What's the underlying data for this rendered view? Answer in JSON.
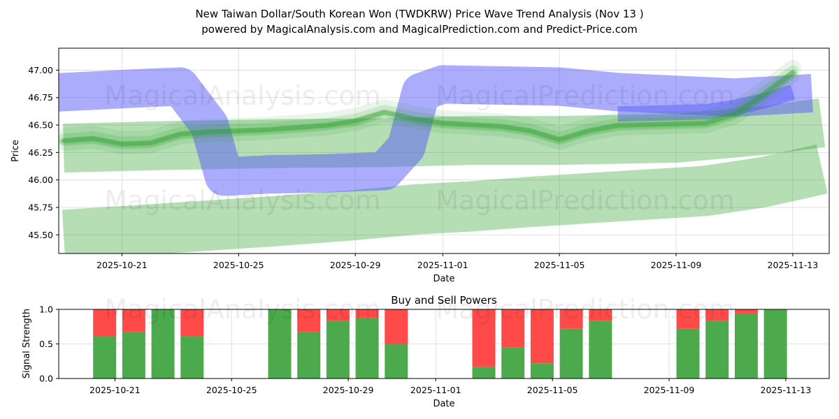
{
  "title_line1": "New Taiwan Dollar/South Korean Won (TWDKRW) Price Wave Trend Analysis (Nov 13 )",
  "title_line2": "powered by MagicalAnalysis.com and MagicalPrediction.com and Predict-Price.com",
  "watermarks": [
    "MagicalAnalysis.com",
    "MagicalPrediction.com"
  ],
  "colors": {
    "green": "#2ca02c",
    "blue": "#5a5afa",
    "buy": "#4caa4c",
    "sell": "#ff4a4a"
  },
  "chart_data": [
    {
      "type": "line",
      "title": "",
      "xlabel": "Date",
      "ylabel": "Price",
      "xlim": [
        "2025-10-18T20:00",
        "2025-11-14T06:00"
      ],
      "ylim": [
        45.33,
        47.2
      ],
      "grid": true,
      "x_ticks": [
        "2025-10-21",
        "2025-10-25",
        "2025-10-29",
        "2025-11-01",
        "2025-11-05",
        "2025-11-09",
        "2025-11-13"
      ],
      "y_ticks": [
        "45.50",
        "45.75",
        "46.00",
        "46.25",
        "46.50",
        "46.75",
        "47.00"
      ],
      "series": [
        {
          "name": "green wave upper band",
          "color": "#2ca02c",
          "points": [
            [
              "2025-10-19",
              46.29
            ],
            [
              "2025-10-22",
              46.31
            ],
            [
              "2025-10-26",
              46.33
            ],
            [
              "2025-10-30",
              46.34
            ],
            [
              "2025-11-02",
              46.36
            ],
            [
              "2025-11-05",
              46.36
            ],
            [
              "2025-11-09",
              46.38
            ],
            [
              "2025-11-12",
              46.45
            ],
            [
              "2025-11-14",
              46.52
            ]
          ]
        },
        {
          "name": "green wave lower band",
          "color": "#2ca02c",
          "points": [
            [
              "2025-10-19",
              45.5
            ],
            [
              "2025-10-22",
              45.55
            ],
            [
              "2025-10-26",
              45.62
            ],
            [
              "2025-10-29",
              45.68
            ],
            [
              "2025-10-31",
              45.73
            ],
            [
              "2025-11-02",
              45.76
            ],
            [
              "2025-11-04",
              45.8
            ],
            [
              "2025-11-07",
              45.85
            ],
            [
              "2025-11-10",
              45.9
            ],
            [
              "2025-11-12",
              45.98
            ],
            [
              "2025-11-14",
              46.1
            ]
          ]
        },
        {
          "name": "green wave center",
          "color": "#2ca02c",
          "points": [
            [
              "2025-10-19",
              46.36
            ],
            [
              "2025-10-20",
              46.38
            ],
            [
              "2025-10-21",
              46.33
            ],
            [
              "2025-10-22",
              46.34
            ],
            [
              "2025-10-23",
              46.42
            ],
            [
              "2025-10-24",
              46.44
            ],
            [
              "2025-10-26",
              46.46
            ],
            [
              "2025-10-28",
              46.5
            ],
            [
              "2025-10-29",
              46.54
            ],
            [
              "2025-10-30",
              46.62
            ],
            [
              "2025-10-31",
              46.56
            ],
            [
              "2025-11-01",
              46.52
            ],
            [
              "2025-11-03",
              46.49
            ],
            [
              "2025-11-04",
              46.45
            ],
            [
              "2025-11-05",
              46.37
            ],
            [
              "2025-11-06",
              46.45
            ],
            [
              "2025-11-07",
              46.5
            ],
            [
              "2025-11-10",
              46.52
            ],
            [
              "2025-11-11",
              46.6
            ],
            [
              "2025-11-12",
              46.78
            ],
            [
              "2025-11-13",
              46.98
            ]
          ]
        },
        {
          "name": "blue wave",
          "color": "#5a5afa",
          "points": [
            [
              "2025-10-19",
              46.8
            ],
            [
              "2025-10-22",
              46.84
            ],
            [
              "2025-10-23",
              46.85
            ],
            [
              "2025-10-24",
              46.5
            ],
            [
              "2025-10-24T12:00",
              46.03
            ],
            [
              "2025-10-26",
              46.05
            ],
            [
              "2025-10-28",
              46.06
            ],
            [
              "2025-10-30",
              46.08
            ],
            [
              "2025-10-30T18:00",
              46.3
            ],
            [
              "2025-10-31T06:00",
              46.8
            ],
            [
              "2025-11-01",
              46.87
            ],
            [
              "2025-11-05",
              46.85
            ],
            [
              "2025-11-07",
              46.8
            ],
            [
              "2025-11-11",
              46.75
            ],
            [
              "2025-11-13",
              46.78
            ]
          ]
        },
        {
          "name": "blue wave short",
          "color": "#5a5afa",
          "points": [
            [
              "2025-11-07",
              46.6
            ],
            [
              "2025-11-10",
              46.62
            ],
            [
              "2025-11-11",
              46.66
            ],
            [
              "2025-11-12",
              46.72
            ],
            [
              "2025-11-13",
              46.8
            ]
          ]
        }
      ]
    },
    {
      "type": "bar",
      "title": "Buy and Sell Powers",
      "xlabel": "Date",
      "ylabel": "Signal Strength",
      "ylim": [
        0,
        1
      ],
      "y_ticks": [
        "0.0",
        "0.5",
        "1.0"
      ],
      "x_ticks": [
        "2025-10-21",
        "2025-10-25",
        "2025-10-29",
        "2025-11-01",
        "2025-11-05",
        "2025-11-09",
        "2025-11-13"
      ],
      "categories": [
        "2025-10-20",
        "2025-10-21",
        "2025-10-22",
        "2025-10-23",
        "2025-10-26",
        "2025-10-27",
        "2025-10-28",
        "2025-10-29",
        "2025-10-30",
        "2025-11-02",
        "2025-11-03",
        "2025-11-04",
        "2025-11-05",
        "2025-11-06",
        "2025-11-09",
        "2025-11-10",
        "2025-11-11",
        "2025-11-12"
      ],
      "series": [
        {
          "name": "Buy",
          "color": "#4caa4c",
          "values": [
            0.61,
            0.67,
            1.0,
            0.61,
            1.0,
            0.67,
            0.83,
            0.88,
            0.5,
            0.17,
            0.45,
            0.22,
            0.72,
            0.83,
            0.72,
            0.83,
            0.94,
            1.0
          ]
        },
        {
          "name": "Sell",
          "color": "#ff4a4a",
          "values": [
            0.39,
            0.33,
            0.0,
            0.39,
            0.0,
            0.33,
            0.17,
            0.12,
            0.5,
            0.83,
            0.55,
            0.78,
            0.28,
            0.17,
            0.28,
            0.17,
            0.06,
            0.0
          ]
        }
      ]
    }
  ]
}
